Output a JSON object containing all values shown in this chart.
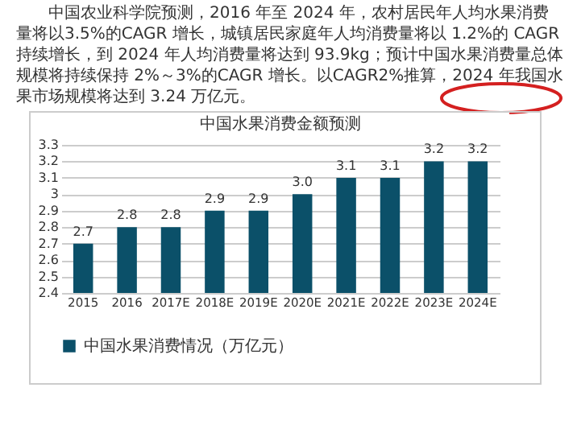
{
  "chart_data": {
    "type": "bar",
    "title": "中国水果消费金额预测",
    "annotations": [
      "中国农业科学院预测，2016 年至 2024 年，农村居民年人均水果消费量将以3.5%的CAGR 增长，城镇居民家庭年人均消费量将以 1.2%的 CAGR 持续增长，到 2024 年人均消费量将达到 93.9kg；预计中国水果消费量总体规模将持续保持 2%～3%的CAGR 增长。以CAGR2%推算，2024 年我国水果市场规模将达到 3.24 万亿元。"
    ],
    "categories": [
      "2015",
      "2016",
      "2017E",
      "2018E",
      "2019E",
      "2020E",
      "2021E",
      "2022E",
      "2023E",
      "2024E"
    ],
    "series": [
      {
        "name": "中国水果消费情况（万亿元）",
        "color": "#0b5069",
        "values": [
          2.7,
          2.8,
          2.8,
          2.9,
          2.9,
          3.0,
          3.1,
          3.1,
          3.2,
          3.2
        ],
        "value_labels": [
          "2.7",
          "2.8",
          "2.8",
          "2.9",
          "2.9",
          "3.0",
          "3.1",
          "3.1",
          "3.2",
          "3.2"
        ]
      }
    ],
    "ylim": [
      2.4,
      3.3
    ],
    "yticks": [
      2.4,
      2.5,
      2.6,
      2.7,
      2.8,
      2.9,
      3,
      3.1,
      3.2,
      3.3
    ],
    "grid": "y",
    "legend": "bottom"
  }
}
